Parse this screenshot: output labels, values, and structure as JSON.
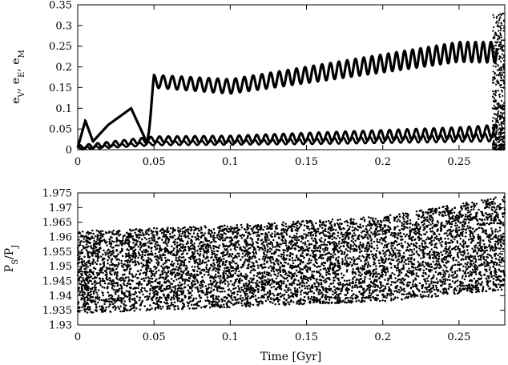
{
  "chart_data": [
    {
      "type": "scatter",
      "panel": "top",
      "ylabel_parts": [
        "e",
        "V",
        ", e",
        "E",
        ", e",
        "M"
      ],
      "xlim": [
        0,
        0.28
      ],
      "ylim": [
        0,
        0.35
      ],
      "xticks": [
        0,
        0.05,
        0.1,
        0.15,
        0.2,
        0.25
      ],
      "xtick_labels": [
        "0",
        "0.05",
        "0.1",
        "0.15",
        "0.2",
        "0.25"
      ],
      "yticks": [
        0,
        0.05,
        0.1,
        0.15,
        0.2,
        0.25,
        0.3,
        0.35
      ],
      "ytick_labels": [
        "0",
        "0.05",
        "0.1",
        "0.15",
        "0.2",
        "0.25",
        "0.3",
        "0.35"
      ],
      "marker_color": "#000000",
      "series": [
        {
          "description_points": [
            [
              0.0,
              0.005
            ],
            [
              0.005,
              0.07
            ],
            [
              0.01,
              0.02
            ],
            [
              0.02,
              0.06
            ],
            [
              0.035,
              0.1
            ],
            [
              0.045,
              0.02
            ],
            [
              0.05,
              0.18
            ],
            [
              0.1,
              0.17
            ],
            [
              0.15,
              0.2
            ],
            [
              0.2,
              0.23
            ],
            [
              0.25,
              0.26
            ],
            [
              0.275,
              0.26
            ]
          ],
          "oscillation_amplitude_after_0.05": [
            0.03,
            0.05
          ]
        },
        {
          "description_points": [
            [
              0.0,
              0.005
            ],
            [
              0.05,
              0.025
            ],
            [
              0.1,
              0.025
            ],
            [
              0.15,
              0.03
            ],
            [
              0.2,
              0.035
            ],
            [
              0.25,
              0.04
            ],
            [
              0.275,
              0.045
            ]
          ],
          "oscillation_amplitude": [
            0.005,
            0.015
          ]
        },
        {
          "description_points": [
            [
              0.0,
              0.003
            ],
            [
              0.05,
              0.015
            ],
            [
              0.15,
              0.02
            ],
            [
              0.275,
              0.03
            ]
          ],
          "oscillation_amplitude": [
            0.003,
            0.01
          ]
        }
      ]
    },
    {
      "type": "scatter",
      "panel": "bottom",
      "ylabel_parts": [
        "P",
        "S",
        "/P",
        "J"
      ],
      "xlabel": "Time [Gyr]",
      "xlim": [
        0,
        0.28
      ],
      "ylim": [
        1.93,
        1.975
      ],
      "xticks": [
        0,
        0.05,
        0.1,
        0.15,
        0.2,
        0.25
      ],
      "xtick_labels": [
        "0",
        "0.05",
        "0.1",
        "0.15",
        "0.2",
        "0.25"
      ],
      "yticks": [
        1.93,
        1.935,
        1.94,
        1.945,
        1.95,
        1.955,
        1.96,
        1.965,
        1.97,
        1.975
      ],
      "ytick_labels": [
        "1.93",
        "1.935",
        "1.94",
        "1.945",
        "1.95",
        "1.955",
        "1.96",
        "1.965",
        "1.97",
        "1.975"
      ],
      "marker_color": "#000000",
      "band": {
        "lower": [
          [
            0.0,
            1.934
          ],
          [
            0.1,
            1.936
          ],
          [
            0.2,
            1.938
          ],
          [
            0.28,
            1.942
          ]
        ],
        "upper": [
          [
            0.0,
            1.962
          ],
          [
            0.1,
            1.964
          ],
          [
            0.2,
            1.967
          ],
          [
            0.28,
            1.974
          ]
        ]
      }
    }
  ]
}
